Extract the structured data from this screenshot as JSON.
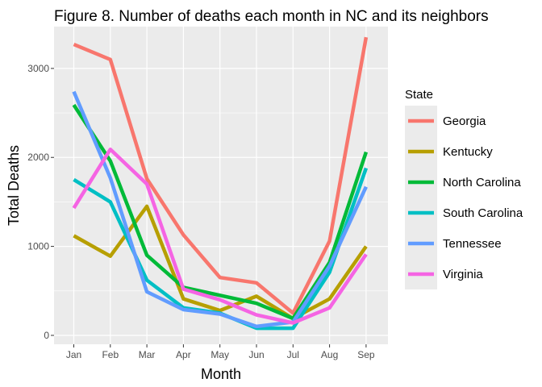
{
  "chart_data": {
    "type": "line",
    "title": "Figure 8. Number of deaths each month in NC and its neighbors",
    "xlabel": "Month",
    "ylabel": "Total Deaths",
    "categories": [
      "Jan",
      "Feb",
      "Mar",
      "Apr",
      "May",
      "Jun",
      "Jul",
      "Aug",
      "Sep"
    ],
    "ylim": [
      -100,
      3470
    ],
    "yticks": [
      0,
      1000,
      2000,
      3000
    ],
    "ytick_labels": [
      "0",
      "1000",
      "2000",
      "3000"
    ],
    "grid": true,
    "legend": {
      "title": "State",
      "position": "right"
    },
    "series": [
      {
        "name": "Georgia",
        "color": "#F8766D",
        "values": [
          3270,
          3100,
          1760,
          1130,
          650,
          590,
          250,
          1060,
          3350
        ]
      },
      {
        "name": "Kentucky",
        "color": "#B79F00",
        "values": [
          1120,
          890,
          1450,
          410,
          280,
          440,
          190,
          410,
          1000
        ]
      },
      {
        "name": "North Carolina",
        "color": "#00BA38",
        "values": [
          2590,
          1960,
          900,
          540,
          450,
          360,
          190,
          820,
          2060
        ]
      },
      {
        "name": "South Carolina",
        "color": "#00BFC4",
        "values": [
          1750,
          1500,
          620,
          310,
          250,
          80,
          80,
          710,
          1880
        ]
      },
      {
        "name": "Tennessee",
        "color": "#619CFF",
        "values": [
          2740,
          1770,
          490,
          290,
          240,
          100,
          150,
          780,
          1670
        ]
      },
      {
        "name": "Virginia",
        "color": "#F564E3",
        "values": [
          1430,
          2090,
          1700,
          520,
          400,
          230,
          140,
          310,
          910
        ]
      }
    ]
  }
}
